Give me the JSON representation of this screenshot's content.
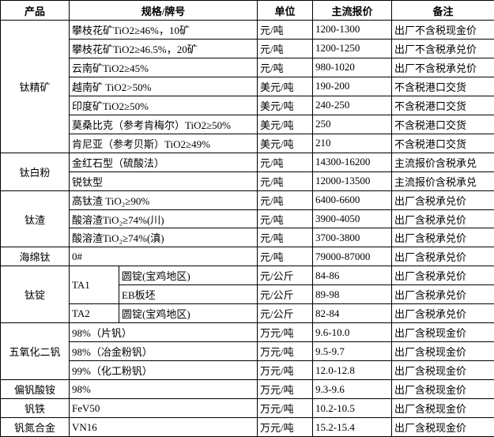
{
  "table": {
    "header": [
      "产品",
      "规格/牌号",
      "单位",
      "主流报价",
      "备注"
    ],
    "groups": [
      {
        "product": "钛精矿",
        "rows": [
          {
            "spec": "攀枝花矿TiO2≥46%，10矿",
            "unit": "元/吨",
            "price": "1200-1300",
            "note": "出厂不含税现金价"
          },
          {
            "spec": "攀枝花矿TiO2≥46.5%，20矿",
            "unit": "元/吨",
            "price": "1200-1250",
            "note": "出厂不含税承兑价"
          },
          {
            "spec": "云南矿TiO2≥45%",
            "unit": "元/吨",
            "price": "980-1020",
            "note": "出厂不含税承兑价"
          },
          {
            "spec": "越南矿 TiO2>50%",
            "unit": "美元/吨",
            "price": "190-200",
            "note": "不含税港口交货"
          },
          {
            "spec": "印度矿TiO2≥50%",
            "unit": "美元/吨",
            "price": "240-250",
            "note": "不含税港口交货"
          },
          {
            "spec": "莫桑比克（参考肯梅尔）TiO2≥50%",
            "unit": "美元/吨",
            "price": "250",
            "note": "不含税港口交货"
          },
          {
            "spec": "肯尼亚（参考贝斯）TiO2≥49%",
            "unit": "美元/吨",
            "price": "210",
            "note": "不含税港口交货"
          }
        ]
      },
      {
        "product": "钛白粉",
        "rows": [
          {
            "spec": "金红石型（硫酸法）",
            "unit": "元/吨",
            "price": "14300-16200",
            "note": "主流报价含税承兑"
          },
          {
            "spec": "锐钛型",
            "unit": "元/吨",
            "price": "12000-13500",
            "note": "主流报价含税承兑"
          }
        ]
      },
      {
        "product": "钛渣",
        "rows": [
          {
            "spec": "高钛渣 TiO₂≥90%",
            "unit": "元/吨",
            "price": "6400-6600",
            "note": "出厂含税承兑价"
          },
          {
            "spec": "酸溶渣TiO₂≥74%(川)",
            "unit": "元/吨",
            "price": "3900-4050",
            "note": "出厂含税承兑价"
          },
          {
            "spec": "酸溶渣TiO₂≥74%(滇)",
            "unit": "元/吨",
            "price": "3700-3800",
            "note": "出厂含税承兑价"
          }
        ]
      },
      {
        "product": "海绵钛",
        "rows": [
          {
            "spec": "0#",
            "unit": "元/吨",
            "price": "79000-87000",
            "note": "出厂含税承兑价"
          }
        ]
      },
      {
        "product": "钛锭",
        "rows": [
          {
            "grade": "TA1",
            "spec": "圆锭(宝鸡地区)",
            "unit": "元/公斤",
            "price": "84-86",
            "note": "出厂含税承兑价"
          },
          {
            "spec": "EB板坯",
            "unit": "元/公斤",
            "price": "89-98",
            "note": "出厂含税承兑价"
          },
          {
            "grade": "TA2",
            "spec": "圆锭(宝鸡地区)",
            "unit": "元/公斤",
            "price": "82-84",
            "note": "出厂含税承兑价"
          }
        ]
      },
      {
        "product": "五氧化二钒",
        "rows": [
          {
            "spec": "98%（片钒）",
            "unit": "万元/吨",
            "price": "9.6-10.0",
            "note": "出厂含税现金价"
          },
          {
            "spec": "98%（冶金粉钒）",
            "unit": "万元/吨",
            "price": "9.5-9.7",
            "note": "出厂含税现金价"
          },
          {
            "spec": "99%（化工粉钒）",
            "unit": "万元/吨",
            "price": "12.0-12.8",
            "note": "出厂含税现金价"
          }
        ]
      },
      {
        "product": "偏钒酸铵",
        "rows": [
          {
            "spec": "98%",
            "unit": "万元/吨",
            "price": "9.3-9.6",
            "note": "出厂含税现金价"
          }
        ]
      },
      {
        "product": "钒铁",
        "rows": [
          {
            "spec": "FeV50",
            "unit": "万元/吨",
            "price": "10.2-10.5",
            "note": "出厂含税现金价"
          }
        ]
      },
      {
        "product": "钒氮合金",
        "rows": [
          {
            "spec": "VN16",
            "unit": "万元/吨",
            "price": "15.2-15.4",
            "note": "出厂含税现金价"
          }
        ]
      }
    ]
  }
}
